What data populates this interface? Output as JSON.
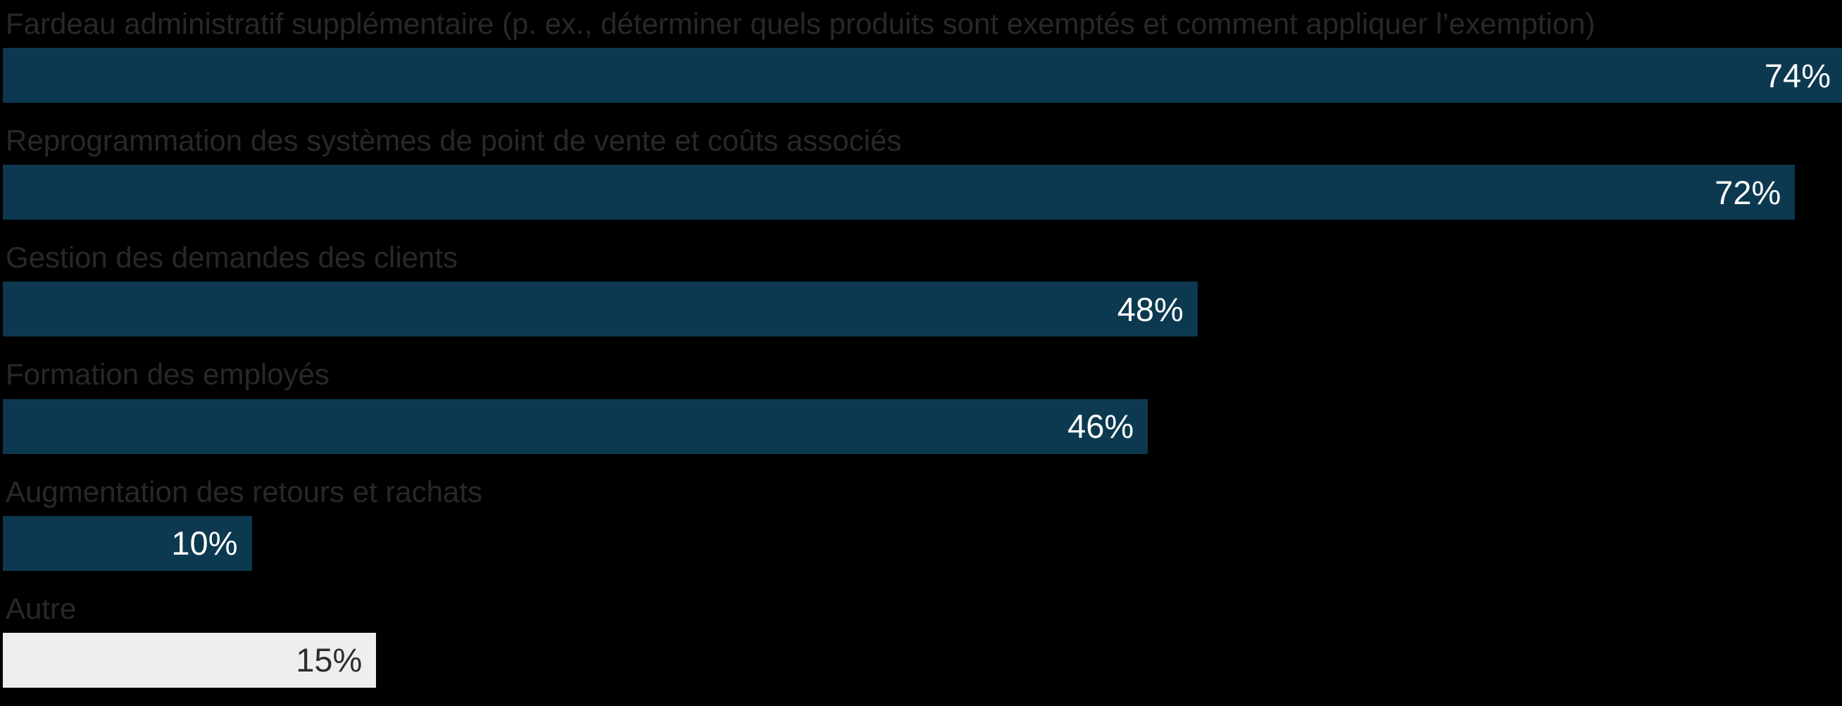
{
  "page": {
    "background_color": "#000000"
  },
  "chart_data": {
    "type": "bar",
    "orientation": "horizontal",
    "title": "",
    "xlabel": "",
    "ylabel": "",
    "grid": false,
    "legend": false,
    "background_color": "#000000",
    "category_label_color": "#282828",
    "xlim": [
      0,
      74
    ],
    "categories": [
      "Fardeau administratif supplémentaire (p. ex., déterminer quels produits sont exemptés et comment appliquer l’exemption)",
      "Reprogrammation des systèmes de point de vente et coûts associés",
      "Gestion des demandes des clients",
      "Formation des employés",
      "Augmentation des retours et rachats",
      "Autre"
    ],
    "values": [
      74,
      72,
      48,
      46,
      10,
      15
    ],
    "value_labels": [
      "74%",
      "72%",
      "48%",
      "46%",
      "10%",
      "15%"
    ],
    "bar_colors": [
      "#0c3950",
      "#0c3950",
      "#0c3950",
      "#0c3950",
      "#0c3950",
      "#eeeeee"
    ],
    "value_label_colors": [
      "#ffffff",
      "#ffffff",
      "#ffffff",
      "#ffffff",
      "#ffffff",
      "#2d2d2d"
    ]
  }
}
